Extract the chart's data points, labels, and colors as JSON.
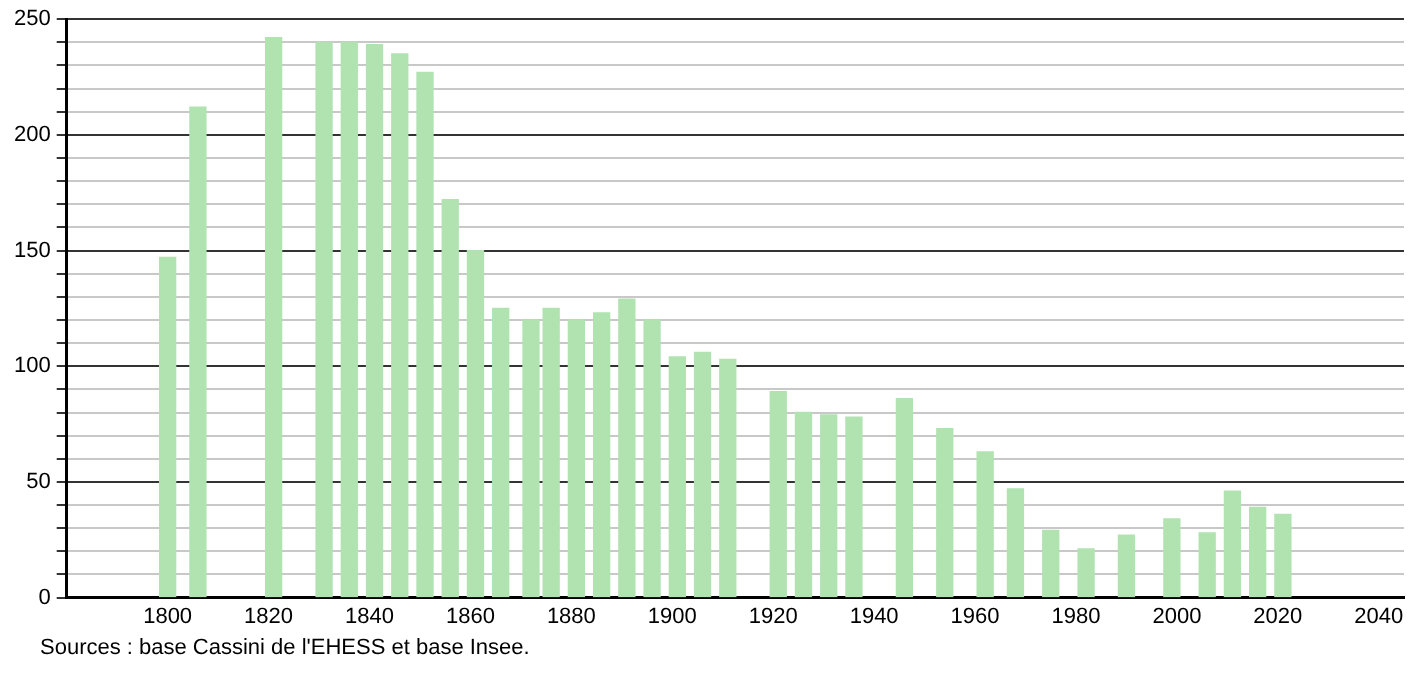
{
  "chart_data": {
    "type": "bar",
    "x": [
      1800,
      1806,
      1821,
      1831,
      1836,
      1841,
      1846,
      1851,
      1856,
      1861,
      1866,
      1872,
      1876,
      1881,
      1886,
      1891,
      1896,
      1901,
      1906,
      1911,
      1921,
      1926,
      1931,
      1936,
      1946,
      1954,
      1962,
      1968,
      1975,
      1982,
      1990,
      1999,
      2006,
      2011,
      2016,
      2021
    ],
    "values": [
      147,
      212,
      242,
      240,
      240,
      239,
      235,
      227,
      172,
      150,
      125,
      120,
      125,
      120,
      123,
      129,
      120,
      104,
      106,
      103,
      89,
      80,
      79,
      78,
      86,
      73,
      63,
      47,
      29,
      21,
      27,
      34,
      28,
      46,
      39,
      36
    ],
    "color": "#b1e3b1",
    "xlim": [
      1780,
      2045
    ],
    "xticks": [
      1800,
      1820,
      1840,
      1860,
      1880,
      1900,
      1920,
      1940,
      1960,
      1980,
      2000,
      2020,
      2040
    ],
    "ylim": [
      0,
      250
    ],
    "yticks": [
      0,
      {
        "value": 10,
        "label": null
      },
      {
        "value": 20,
        "label": null
      },
      {
        "value": 30,
        "label": null
      },
      {
        "value": 40,
        "label": null
      },
      50,
      {
        "value": 60,
        "label": null
      },
      {
        "value": 70,
        "label": null
      },
      {
        "value": 80,
        "label": null
      },
      {
        "value": 90,
        "label": null
      },
      100,
      {
        "value": 110,
        "label": null
      },
      {
        "value": 120,
        "label": null
      },
      {
        "value": 130,
        "label": null
      },
      {
        "value": 140,
        "label": null
      },
      150,
      {
        "value": 160,
        "label": null
      },
      {
        "value": 170,
        "label": null
      },
      {
        "value": 180,
        "label": null
      },
      {
        "value": 190,
        "label": null
      },
      200,
      {
        "value": 210,
        "label": null
      },
      {
        "value": 220,
        "label": null
      },
      {
        "value": 230,
        "label": null
      },
      {
        "value": 240,
        "label": null
      },
      250
    ],
    "grid": "y",
    "legend": false,
    "annotations": [
      "Sources : base Cassini de l'EHESS et base Insee."
    ]
  }
}
